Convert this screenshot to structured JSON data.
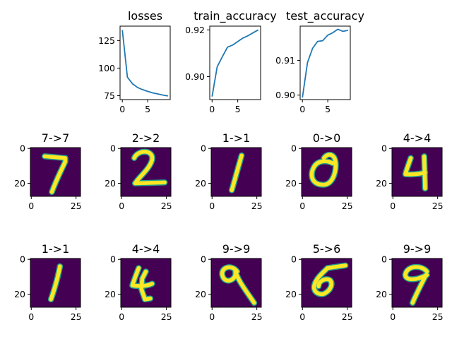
{
  "chart_data": [
    {
      "type": "line",
      "title": "losses",
      "x": [
        0,
        1,
        2,
        3,
        4,
        5,
        6,
        7,
        8,
        9
      ],
      "y": [
        134.5,
        91.8,
        85.8,
        82.5,
        80.5,
        78.9,
        77.6,
        76.6,
        75.6,
        74.8
      ],
      "xlim": [
        -0.45,
        9.45
      ],
      "ylim": [
        71.5,
        138
      ],
      "xticks": [
        0,
        5
      ],
      "yticks": [
        75,
        100,
        125
      ],
      "ytick_labels": [
        "75",
        "100",
        "125"
      ],
      "grid": false
    },
    {
      "type": "line",
      "title": "train_accuracy",
      "x": [
        0,
        1,
        2,
        3,
        4,
        5,
        6,
        7,
        8,
        9
      ],
      "y": [
        0.8915,
        0.9042,
        0.9085,
        0.9126,
        0.9135,
        0.915,
        0.9165,
        0.9175,
        0.9188,
        0.92
      ],
      "xlim": [
        -0.45,
        9.45
      ],
      "ylim": [
        0.8902,
        0.9216
      ],
      "xticks": [
        0,
        5
      ],
      "yticks": [
        0.9,
        0.92
      ],
      "ytick_labels": [
        "0.90",
        "0.92"
      ],
      "grid": false
    },
    {
      "type": "line",
      "title": "test_accuracy",
      "x": [
        0,
        1,
        2,
        3,
        4,
        5,
        6,
        7,
        8,
        9
      ],
      "y": [
        0.8993,
        0.9094,
        0.9135,
        0.9155,
        0.9157,
        0.9173,
        0.918,
        0.919,
        0.9184,
        0.9187
      ],
      "xlim": [
        -0.45,
        9.45
      ],
      "ylim": [
        0.8987,
        0.9199
      ],
      "xticks": [
        0,
        5
      ],
      "yticks": [
        0.9,
        0.91
      ],
      "ytick_labels": [
        "0.90",
        "0.91"
      ],
      "grid": false
    }
  ],
  "digits": {
    "xticks": [
      "0",
      "25"
    ],
    "yticks": [
      "0",
      "20"
    ],
    "background_color": "#440154",
    "foreground_color": "#fde725",
    "edge_color": "#21a08a",
    "items": [
      {
        "label": "7->7"
      },
      {
        "label": "2->2"
      },
      {
        "label": "1->1"
      },
      {
        "label": "0->0"
      },
      {
        "label": "4->4"
      },
      {
        "label": "1->1"
      },
      {
        "label": "4->4"
      },
      {
        "label": "9->9"
      },
      {
        "label": "5->6"
      },
      {
        "label": "9->9"
      }
    ]
  }
}
